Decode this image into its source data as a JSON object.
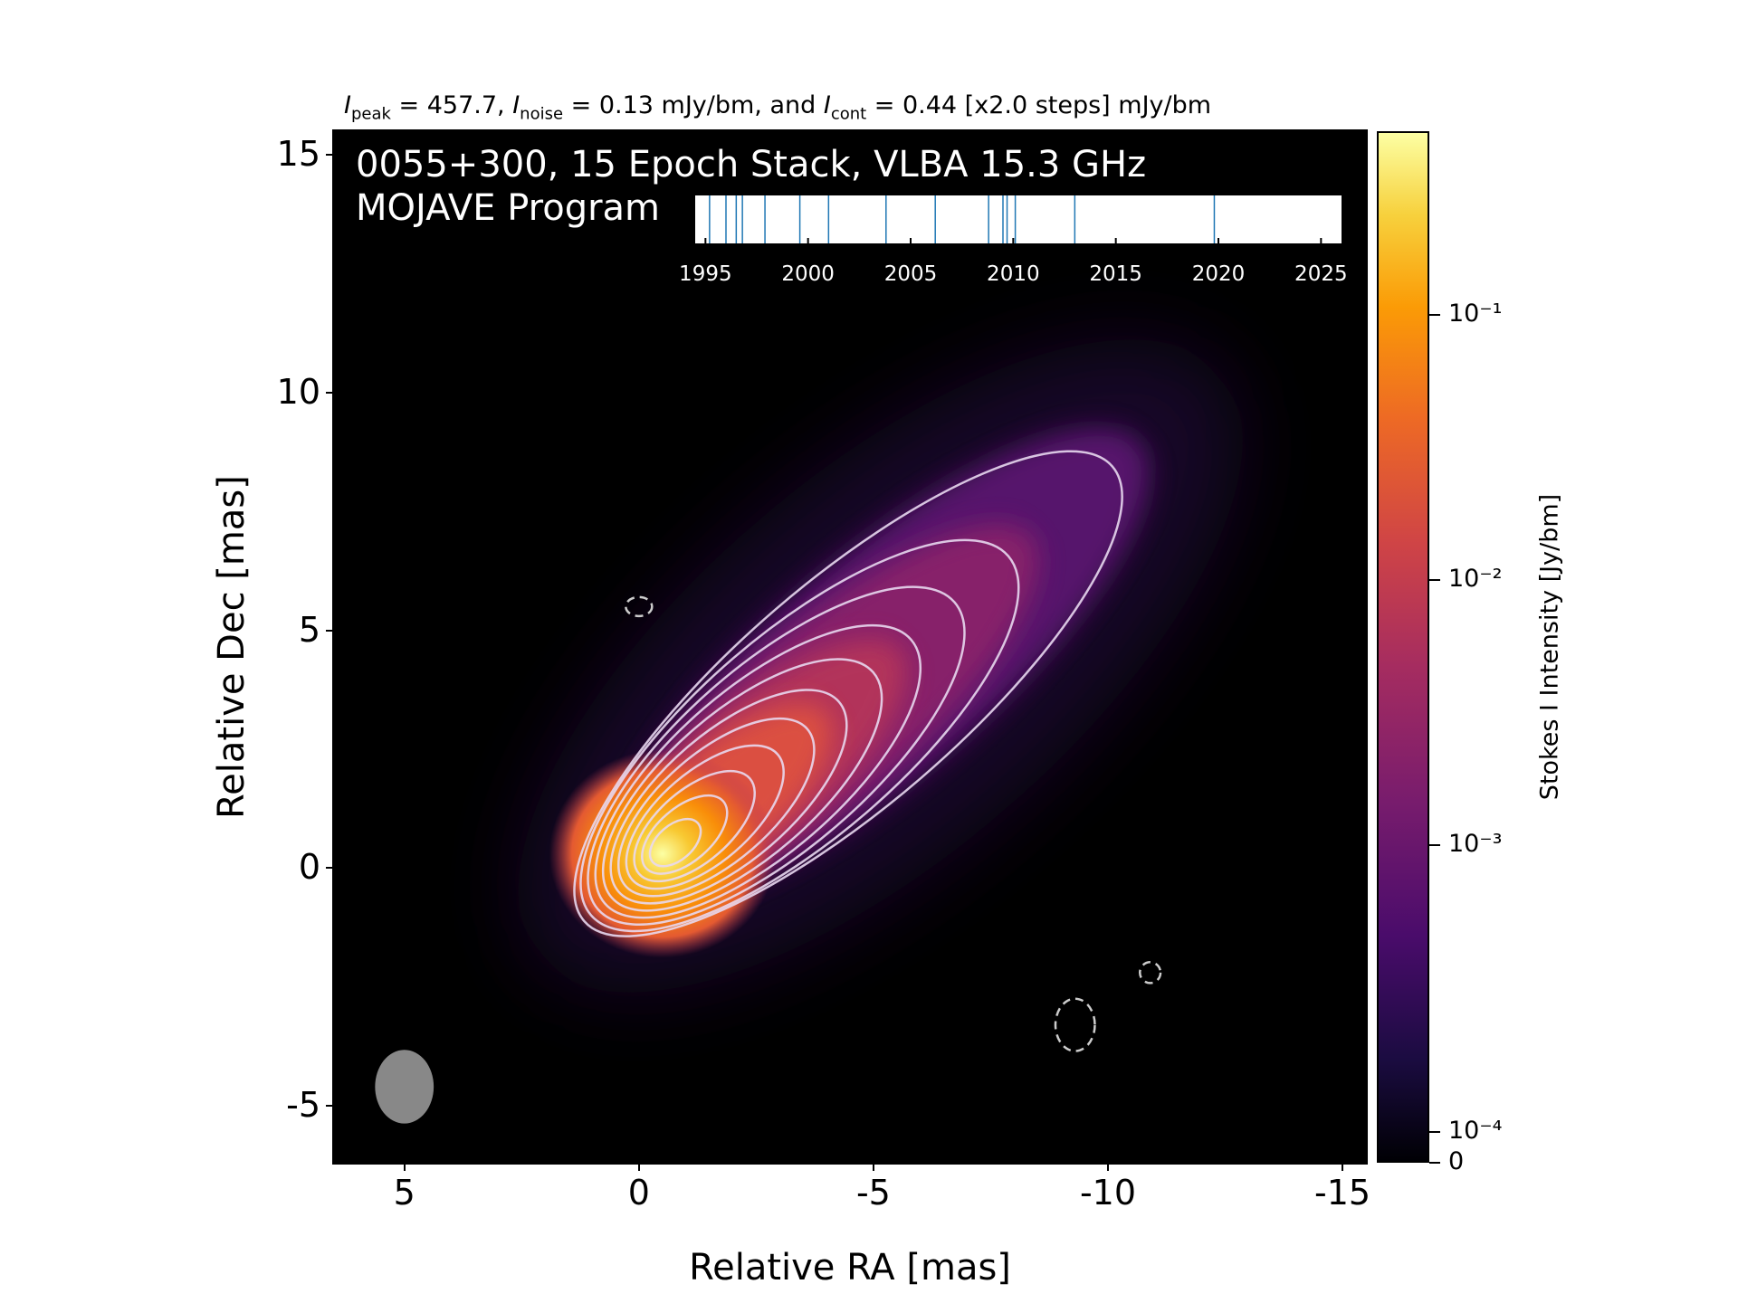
{
  "header": {
    "peak_label": "I",
    "peak_sub": "peak",
    "peak_text": " = 457.7, ",
    "noise_label": "I",
    "noise_sub": "noise",
    "noise_text": " = 0.13 mJy/bm, and ",
    "cont_label": "I",
    "cont_sub": "cont",
    "cont_text": " = 0.44 [x2.0 steps] mJy/bm"
  },
  "plot_title": {
    "line1": "0055+300, 15 Epoch Stack, VLBA 15.3 GHz",
    "line2": "MOJAVE Program"
  },
  "colors": {
    "background": "#000000",
    "contour": "#e8d8f0",
    "beam": "#888888",
    "timeline_tick": "#1f77b4"
  },
  "chart_data": {
    "type": "heatmap",
    "xlabel": "Relative RA [mas]",
    "ylabel": "Relative Dec [mas]",
    "xlim": [
      6.5,
      -15.5
    ],
    "ylim": [
      -6.2,
      15.5
    ],
    "x_ticks": [
      5,
      0,
      -5,
      -10,
      -15
    ],
    "x_tick_labels": [
      "5",
      "0",
      "-5",
      "-10",
      "-15"
    ],
    "y_ticks": [
      15,
      10,
      5,
      0,
      -5
    ],
    "y_tick_labels": [
      "15",
      "10",
      "5",
      "0",
      "-5"
    ],
    "colormap": "inferno",
    "colorbar": {
      "label": "Stokes I Intensity [Jy/bm]",
      "scale": "log",
      "tick_labels": [
        "10⁻¹",
        "10⁻²",
        "10⁻³",
        "10⁻⁴",
        "0"
      ],
      "tick_fractions": [
        0.822,
        0.565,
        0.308,
        0.03,
        0
      ]
    },
    "peak_position": [
      -0.5,
      0.3
    ],
    "beam": {
      "x": 5.0,
      "y": -4.6,
      "major_mas": 1.55,
      "minor_mas": 1.25
    },
    "epoch_timeline": {
      "range": [
        1994.5,
        2026.0
      ],
      "tick_labels": [
        "1995",
        "2000",
        "2005",
        "2010",
        "2015",
        "2020",
        "2025"
      ],
      "tick_years": [
        1995,
        2000,
        2005,
        2010,
        2015,
        2020,
        2025
      ],
      "epochs": [
        1995.2,
        1996.0,
        1996.5,
        1996.8,
        1997.9,
        1999.6,
        2001.0,
        2003.8,
        2006.2,
        2008.8,
        2009.5,
        2009.7,
        2010.1,
        2013.0,
        2019.8
      ]
    },
    "negative_contours": [
      {
        "x": 0.0,
        "y": 5.5,
        "rx": 0.28,
        "ry": 0.2
      },
      {
        "x": -10.9,
        "y": -2.2,
        "rx": 0.22,
        "ry": 0.22
      },
      {
        "x": -9.3,
        "y": -3.3,
        "rx": 0.42,
        "ry": 0.55
      }
    ]
  }
}
